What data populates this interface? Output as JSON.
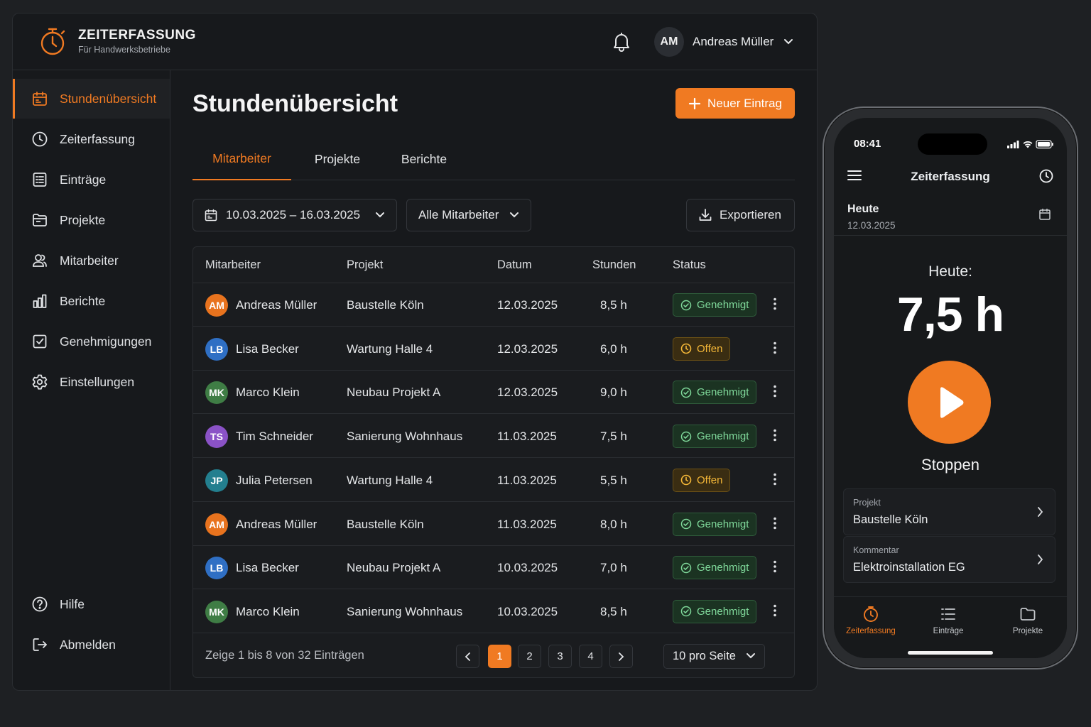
{
  "app": {
    "brand_title": "ZEITERFASSUNG",
    "brand_subtitle": "Für Handwerksbetriebe",
    "accent_color": "#f07a22"
  },
  "header": {
    "user_initials": "AM",
    "user_name": "Andreas Müller"
  },
  "sidebar": {
    "items": [
      {
        "label": "Stundenübersicht",
        "icon": "calendar-icon",
        "active": true
      },
      {
        "label": "Zeiterfassung",
        "icon": "clock-icon"
      },
      {
        "label": "Einträge",
        "icon": "list-icon"
      },
      {
        "label": "Projekte",
        "icon": "folder-icon"
      },
      {
        "label": "Mitarbeiter",
        "icon": "users-icon"
      },
      {
        "label": "Berichte",
        "icon": "bar-chart-icon"
      },
      {
        "label": "Genehmigungen",
        "icon": "checkbox-icon"
      },
      {
        "label": "Einstellungen",
        "icon": "gear-icon"
      }
    ],
    "bottom": [
      {
        "label": "Hilfe",
        "icon": "help-icon"
      },
      {
        "label": "Abmelden",
        "icon": "logout-icon"
      }
    ]
  },
  "main": {
    "title": "Stundenübersicht",
    "new_button": "Neuer Eintrag",
    "tabs": [
      "Mitarbeiter",
      "Projekte",
      "Berichte"
    ],
    "date_range": "10.03.2025 – 16.03.2025",
    "employee_filter": "Alle Mitarbeiter",
    "export_label": "Exportieren"
  },
  "table": {
    "columns": [
      "Mitarbeiter",
      "Projekt",
      "Datum",
      "Stunden",
      "Status"
    ],
    "rows": [
      {
        "initials": "AM",
        "avatar_color": "#e8731e",
        "name": "Andreas Müller",
        "project": "Baustelle Köln",
        "date": "12.03.2025",
        "hours": "8,5 h",
        "status": "Genehmigt",
        "status_type": "ok"
      },
      {
        "initials": "LB",
        "avatar_color": "#2f6fc4",
        "name": "Lisa Becker",
        "project": "Wartung Halle 4",
        "date": "12.03.2025",
        "hours": "6,0 h",
        "status": "Offen",
        "status_type": "open"
      },
      {
        "initials": "MK",
        "avatar_color": "#3f7d45",
        "name": "Marco Klein",
        "project": "Neubau Projekt A",
        "date": "12.03.2025",
        "hours": "9,0 h",
        "status": "Genehmigt",
        "status_type": "ok"
      },
      {
        "initials": "TS",
        "avatar_color": "#8a52c6",
        "name": "Tim Schneider",
        "project": "Sanierung Wohnhaus",
        "date": "11.03.2025",
        "hours": "7,5 h",
        "status": "Genehmigt",
        "status_type": "ok"
      },
      {
        "initials": "JP",
        "avatar_color": "#237f8f",
        "name": "Julia Petersen",
        "project": "Wartung Halle 4",
        "date": "11.03.2025",
        "hours": "5,5 h",
        "status": "Offen",
        "status_type": "open"
      },
      {
        "initials": "AM",
        "avatar_color": "#e8731e",
        "name": "Andreas Müller",
        "project": "Baustelle Köln",
        "date": "11.03.2025",
        "hours": "8,0 h",
        "status": "Genehmigt",
        "status_type": "ok"
      },
      {
        "initials": "LB",
        "avatar_color": "#2f6fc4",
        "name": "Lisa Becker",
        "project": "Neubau Projekt A",
        "date": "10.03.2025",
        "hours": "7,0 h",
        "status": "Genehmigt",
        "status_type": "ok"
      },
      {
        "initials": "MK",
        "avatar_color": "#3f7d45",
        "name": "Marco Klein",
        "project": "Sanierung Wohnhaus",
        "date": "10.03.2025",
        "hours": "8,5 h",
        "status": "Genehmigt",
        "status_type": "ok"
      }
    ],
    "showing": "Zeige 1 bis 8 von 32 Einträgen",
    "pages": [
      "1",
      "2",
      "3",
      "4"
    ],
    "current_page": "1",
    "per_page": "10 pro Seite"
  },
  "phone": {
    "time": "08:41",
    "title": "Zeiterfassung",
    "today_label": "Heute",
    "today_date": "12.03.2025",
    "heute_label": "Heute:",
    "hours_today": "7,5 h",
    "stop_label": "Stoppen",
    "project_label": "Projekt",
    "project_value": "Baustelle Köln",
    "comment_label": "Kommentar",
    "comment_value": "Elektroinstallation EG",
    "nav": [
      {
        "label": "Zeiterfassung",
        "icon": "clock-icon",
        "active": true
      },
      {
        "label": "Einträge",
        "icon": "list-icon"
      },
      {
        "label": "Projekte",
        "icon": "folder-icon"
      }
    ]
  }
}
